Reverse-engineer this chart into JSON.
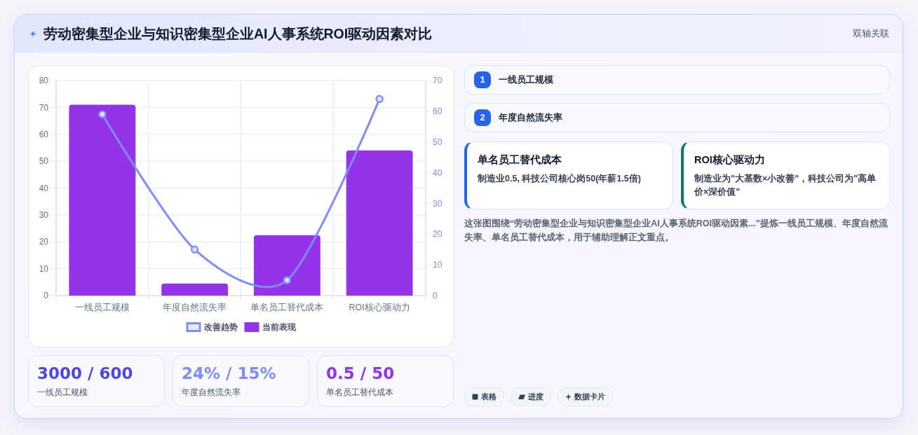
{
  "chart_data": {
    "type": "bar",
    "title": "劳动密集型企业与知识密集型企业AI人事系统ROI驱动因素对比",
    "categories": [
      "一线员工规模",
      "年度自然流失率",
      "单名员工替代成本",
      "ROI核心驱动力"
    ],
    "series": [
      {
        "name": "改善趋势",
        "type": "line",
        "axis": "y2",
        "color": "#818cf8",
        "values": [
          59,
          15,
          5,
          64
        ]
      },
      {
        "name": "当前表现",
        "color": "#9333ea",
        "values": [
          71,
          4.5,
          22.5,
          54
        ]
      }
    ],
    "ylim": [
      0,
      80
    ],
    "yticks": [
      0,
      10,
      20,
      30,
      40,
      50,
      60,
      70,
      80
    ],
    "y2lim": [
      0,
      70
    ],
    "y2ticks": [
      0,
      10,
      20,
      30,
      40,
      50,
      60,
      70
    ],
    "grid": true,
    "legend": "bottom",
    "marker": "circle",
    "annotations": [
      "双轴关联",
      "1",
      "一线员工规模",
      "2",
      "年度自然流失率",
      "单名员工替代成本",
      "制造业0.5, 科技公司核心岗50(年薪1.5倍)",
      "ROI核心驱动力",
      "制造业为\"大基数×小改善\"，科技公司为\"高单价×深价值\"",
      "这张图围绕“劳动密集型企业与知识密集型企业AI人事系统ROI驱动因素...”提炼一线员工规模、年度自然流失率、单名员工替代成本，用于辅助理解正文重点。",
      "3000 / 600",
      "一线员工规模",
      "24% / 15%",
      "年度自然流失率",
      "0.5 / 50",
      "单名员工替代成本",
      "表格",
      "进度",
      "数据卡片"
    ]
  }
}
